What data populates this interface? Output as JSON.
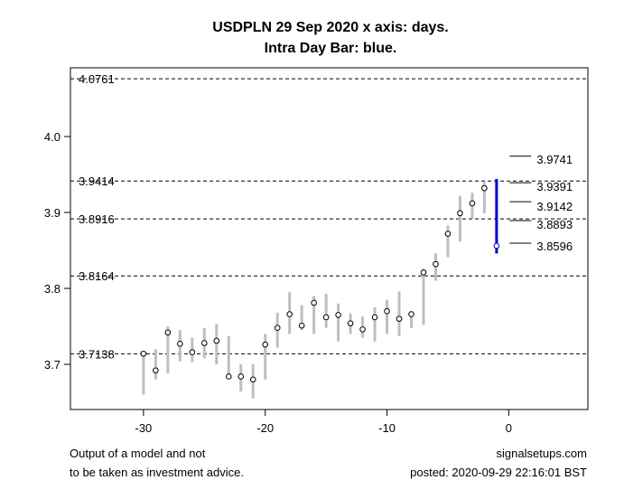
{
  "chart_data": {
    "type": "line",
    "title_lines": [
      "USDPLN 29 Sep 2020 x axis: days.",
      "Intra Day Bar: blue."
    ],
    "xlim": [
      -36,
      6.5
    ],
    "ylim": [
      3.6405,
      4.0905
    ],
    "x_ticks": [
      -30,
      -20,
      -10,
      0
    ],
    "x_tick_labels": [
      "-30",
      "-20",
      "-10",
      "0"
    ],
    "y_ticks": [
      3.7,
      3.8,
      3.9,
      4.0
    ],
    "y_tick_labels": [
      "3.7",
      "3.8",
      "3.9",
      "4.0"
    ],
    "levels": [
      {
        "value": 4.0761,
        "label": "4.0761"
      },
      {
        "value": 3.9414,
        "label": "3.9414"
      },
      {
        "value": 3.8916,
        "label": "3.8916"
      },
      {
        "value": 3.8164,
        "label": "3.8164"
      },
      {
        "value": 3.7138,
        "label": "3.7138"
      }
    ],
    "daily_bars": [
      {
        "x": -30,
        "low": 3.66,
        "high": 3.715,
        "close": 3.714
      },
      {
        "x": -29,
        "low": 3.68,
        "high": 3.72,
        "close": 3.692
      },
      {
        "x": -28,
        "low": 3.688,
        "high": 3.75,
        "close": 3.742
      },
      {
        "x": -27,
        "low": 3.704,
        "high": 3.745,
        "close": 3.727
      },
      {
        "x": -26,
        "low": 3.703,
        "high": 3.735,
        "close": 3.716
      },
      {
        "x": -25,
        "low": 3.708,
        "high": 3.748,
        "close": 3.728
      },
      {
        "x": -24,
        "low": 3.7,
        "high": 3.753,
        "close": 3.731
      },
      {
        "x": -23,
        "low": 3.683,
        "high": 3.737,
        "close": 3.684
      },
      {
        "x": -22,
        "low": 3.664,
        "high": 3.7,
        "close": 3.684
      },
      {
        "x": -21,
        "low": 3.655,
        "high": 3.7,
        "close": 3.68
      },
      {
        "x": -20,
        "low": 3.68,
        "high": 3.74,
        "close": 3.726
      },
      {
        "x": -19,
        "low": 3.722,
        "high": 3.768,
        "close": 3.748
      },
      {
        "x": -18,
        "low": 3.74,
        "high": 3.795,
        "close": 3.766
      },
      {
        "x": -17,
        "low": 3.745,
        "high": 3.778,
        "close": 3.751
      },
      {
        "x": -16,
        "low": 3.74,
        "high": 3.79,
        "close": 3.781
      },
      {
        "x": -15,
        "low": 3.748,
        "high": 3.793,
        "close": 3.762
      },
      {
        "x": -14,
        "low": 3.73,
        "high": 3.78,
        "close": 3.765
      },
      {
        "x": -13,
        "low": 3.74,
        "high": 3.767,
        "close": 3.754
      },
      {
        "x": -12,
        "low": 3.735,
        "high": 3.763,
        "close": 3.746
      },
      {
        "x": -11,
        "low": 3.73,
        "high": 3.775,
        "close": 3.762
      },
      {
        "x": -10,
        "low": 3.74,
        "high": 3.785,
        "close": 3.77
      },
      {
        "x": -9,
        "low": 3.737,
        "high": 3.796,
        "close": 3.76
      },
      {
        "x": -8,
        "low": 3.748,
        "high": 3.77,
        "close": 3.766
      },
      {
        "x": -7,
        "low": 3.752,
        "high": 3.826,
        "close": 3.821
      },
      {
        "x": -6,
        "low": 3.81,
        "high": 3.846,
        "close": 3.832
      },
      {
        "x": -5,
        "low": 3.841,
        "high": 3.883,
        "close": 3.872
      },
      {
        "x": -4,
        "low": 3.862,
        "high": 3.922,
        "close": 3.899
      },
      {
        "x": -3,
        "low": 3.892,
        "high": 3.926,
        "close": 3.912
      },
      {
        "x": -2,
        "low": 3.899,
        "high": 3.94,
        "close": 3.932
      }
    ],
    "intraday_bar": {
      "x": -1,
      "low": 3.846,
      "high": 3.944,
      "close": 3.856,
      "color": "#0000cc"
    },
    "right_markers": [
      {
        "value": 3.9741,
        "label": "3.9741",
        "style": "solid"
      },
      {
        "value": 3.9391,
        "label": "3.9391",
        "style": "solid"
      },
      {
        "value": 3.9142,
        "label": "3.9142",
        "style": "solid"
      },
      {
        "value": 3.8893,
        "label": "3.8893",
        "style": "solid"
      },
      {
        "value": 3.8596,
        "label": "3.8596",
        "style": "solid"
      }
    ],
    "bar_color": "#bebebe",
    "level_line_color": "#000000"
  },
  "footer": {
    "left_line1": "Output of a model and not",
    "left_line2": "to be taken as investment advice.",
    "right_line1": "signalsetups.com",
    "right_line2": "posted: 2020-09-29 22:16:01 BST"
  }
}
